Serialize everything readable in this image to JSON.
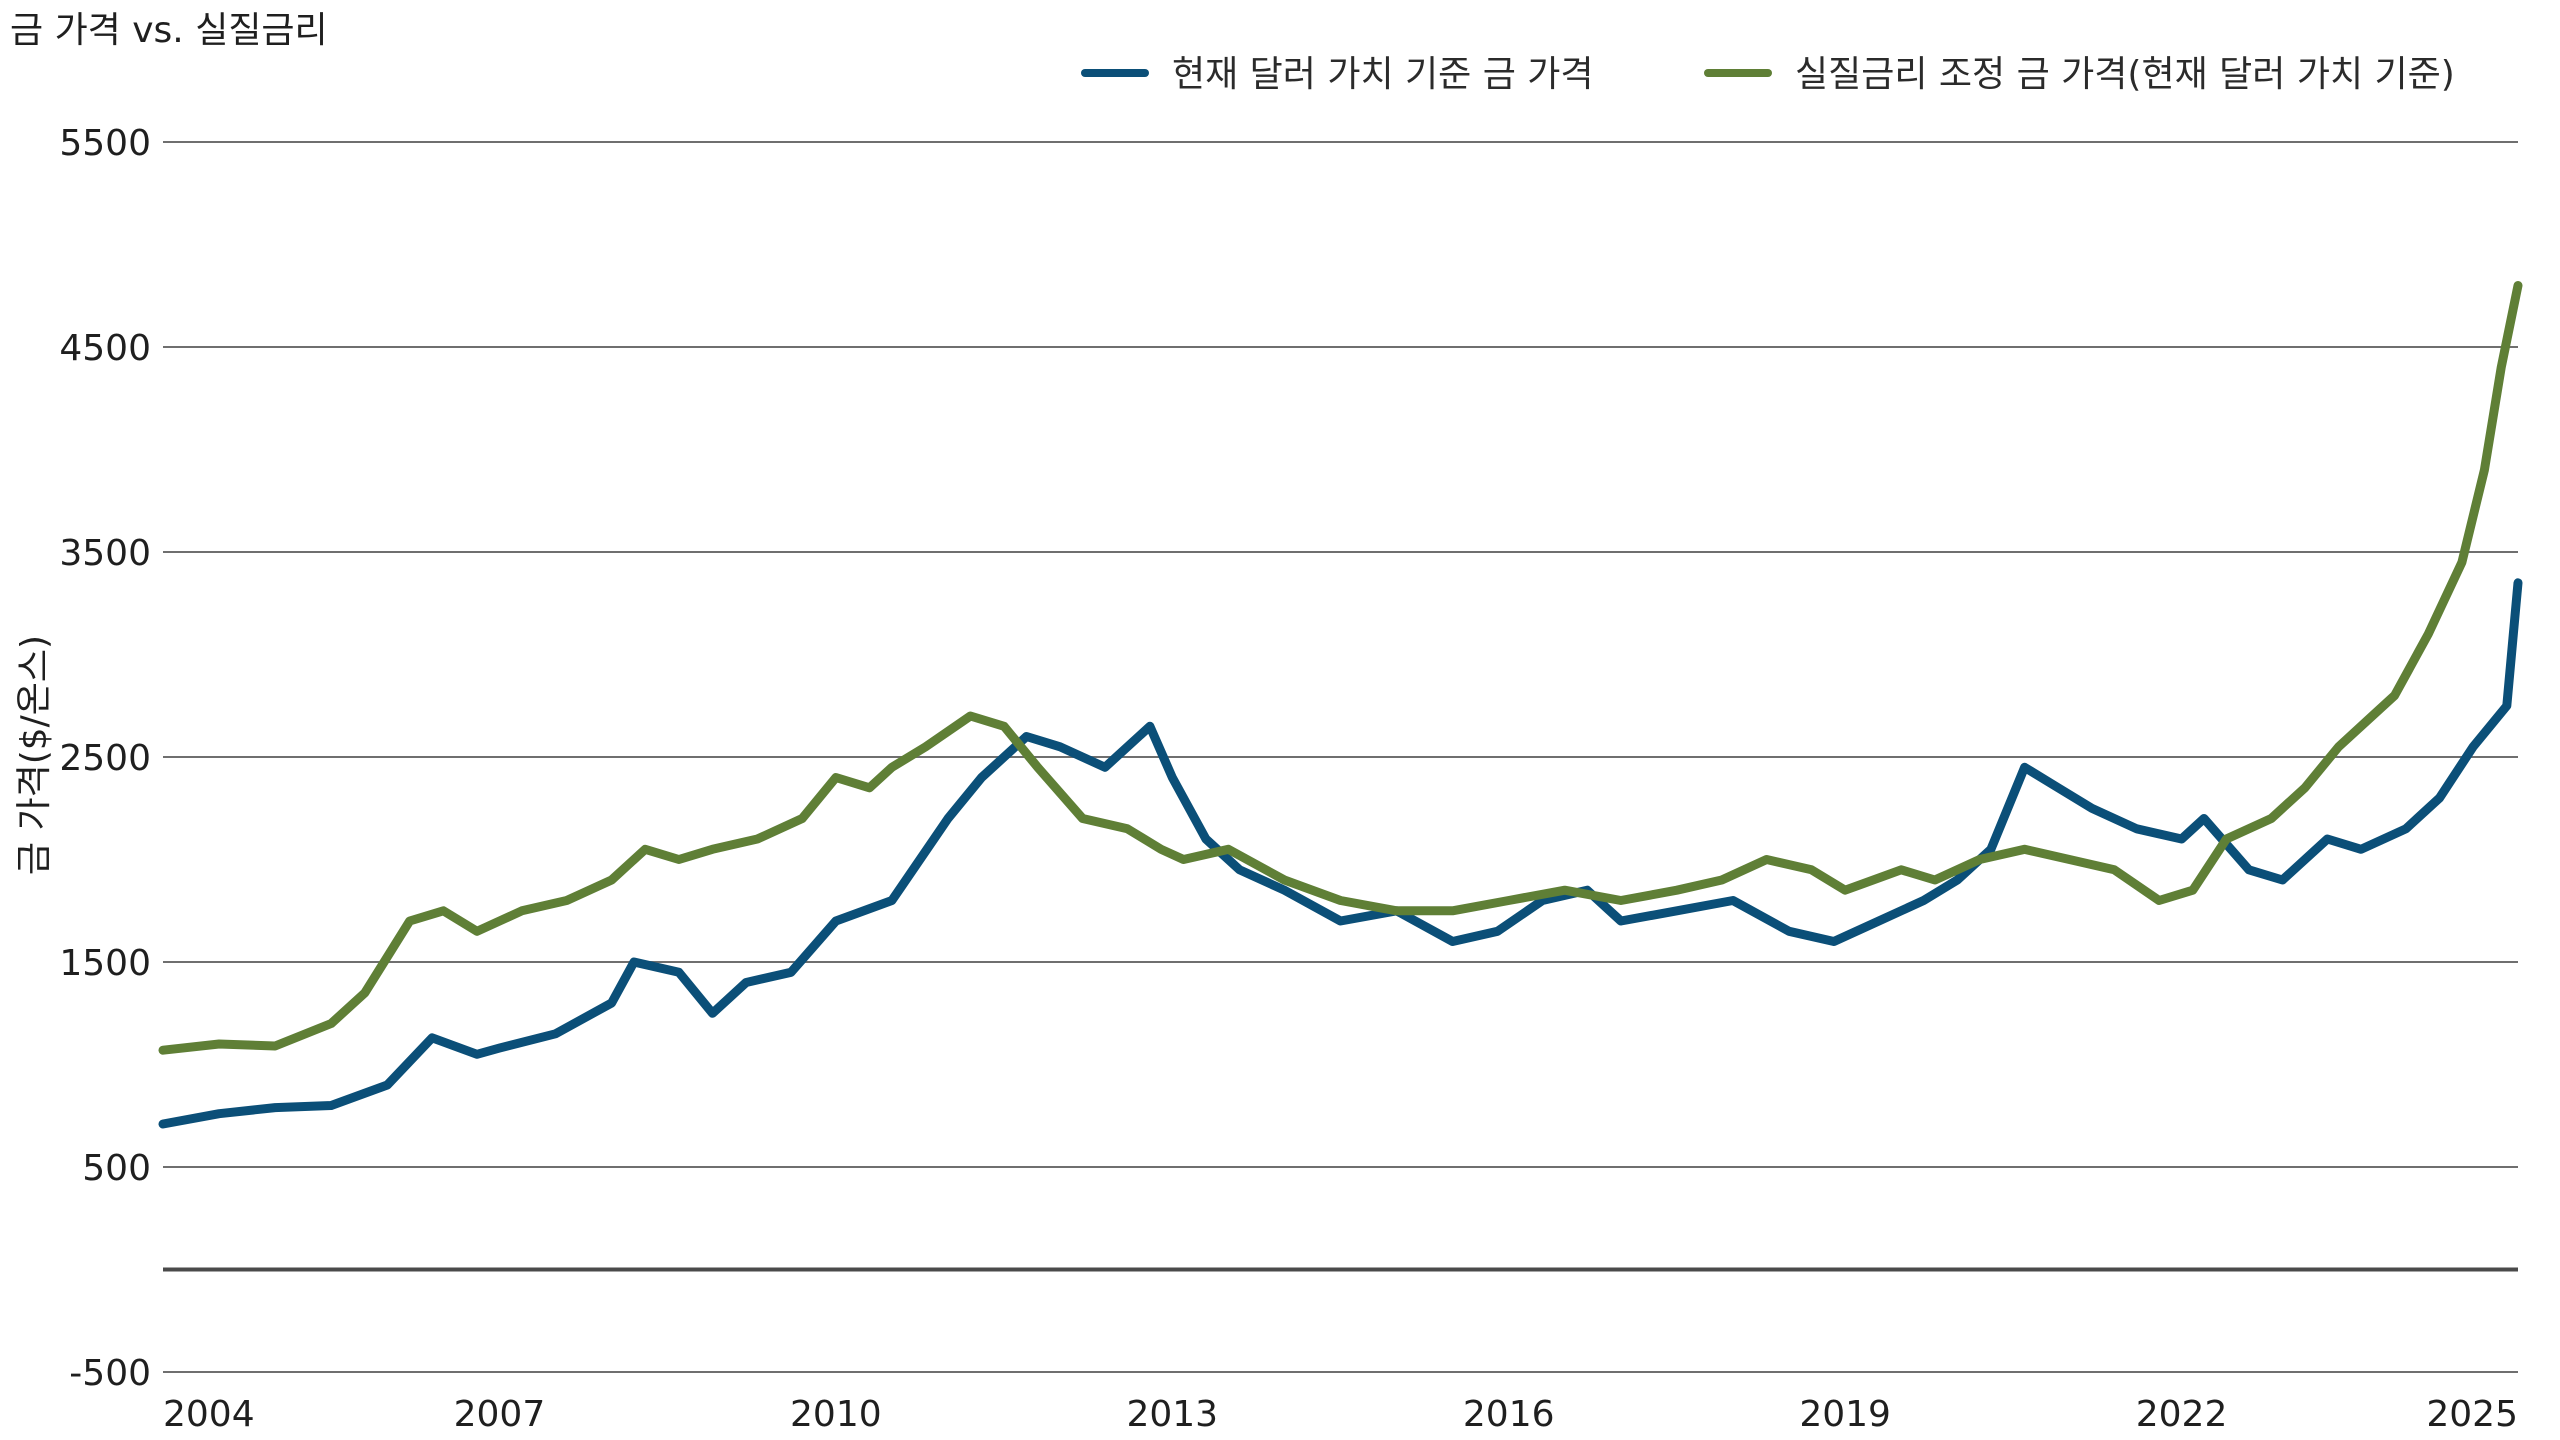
{
  "chart_data": {
    "type": "line",
    "title": "금 가격 vs. 실질금리",
    "ylabel": "금 가격($/온스)",
    "xlabel": "",
    "xlim": [
      2004.0,
      2025.0
    ],
    "ylim": [
      -500,
      5500
    ],
    "y_ticks": [
      5500,
      4500,
      3500,
      2500,
      1500,
      500,
      -500
    ],
    "x_ticks": [
      2004,
      2007,
      2010,
      2013,
      2016,
      2019,
      2022,
      2025
    ],
    "grid": true,
    "legend_position": "top-right",
    "series": [
      {
        "name": "현재 달러 가치 기준 금 가격",
        "color": "#0b4f78",
        "x": [
          2004.0,
          2004.5,
          2005.0,
          2005.5,
          2006.0,
          2006.4,
          2006.8,
          2007.0,
          2007.5,
          2008.0,
          2008.2,
          2008.6,
          2008.9,
          2009.2,
          2009.6,
          2010.0,
          2010.5,
          2011.0,
          2011.3,
          2011.7,
          2012.0,
          2012.4,
          2012.8,
          2013.0,
          2013.3,
          2013.6,
          2014.0,
          2014.5,
          2015.0,
          2015.5,
          2015.9,
          2016.3,
          2016.7,
          2017.0,
          2017.5,
          2018.0,
          2018.5,
          2018.9,
          2019.3,
          2019.7,
          2020.0,
          2020.3,
          2020.6,
          2020.9,
          2021.2,
          2021.6,
          2022.0,
          2022.2,
          2022.6,
          2022.9,
          2023.3,
          2023.6,
          2024.0,
          2024.3,
          2024.6,
          2024.9,
          2025.0
        ],
        "y": [
          710,
          760,
          790,
          800,
          900,
          1130,
          1050,
          1080,
          1150,
          1300,
          1500,
          1450,
          1250,
          1400,
          1450,
          1700,
          1800,
          2200,
          2400,
          2600,
          2550,
          2450,
          2650,
          2400,
          2100,
          1950,
          1850,
          1700,
          1750,
          1600,
          1650,
          1800,
          1850,
          1700,
          1750,
          1800,
          1650,
          1600,
          1700,
          1800,
          1900,
          2050,
          2450,
          2350,
          2250,
          2150,
          2100,
          2200,
          1950,
          1900,
          2100,
          2050,
          2150,
          2300,
          2550,
          2750,
          3350
        ]
      },
      {
        "name": "실질금리 조정 금 가격(현재 달러 가치 기준)",
        "color": "#5f7f36",
        "x": [
          2004.0,
          2004.5,
          2005.0,
          2005.5,
          2005.8,
          2006.2,
          2006.5,
          2006.8,
          2007.2,
          2007.6,
          2008.0,
          2008.3,
          2008.6,
          2008.9,
          2009.3,
          2009.7,
          2010.0,
          2010.3,
          2010.5,
          2010.8,
          2011.2,
          2011.5,
          2011.8,
          2012.2,
          2012.6,
          2012.9,
          2013.1,
          2013.5,
          2014.0,
          2014.5,
          2015.0,
          2015.5,
          2016.0,
          2016.5,
          2017.0,
          2017.5,
          2017.9,
          2018.3,
          2018.7,
          2019.0,
          2019.5,
          2019.8,
          2020.2,
          2020.6,
          2021.0,
          2021.4,
          2021.8,
          2022.1,
          2022.4,
          2022.8,
          2023.1,
          2023.4,
          2023.7,
          2023.9,
          2024.2,
          2024.5,
          2024.7,
          2024.85,
          2025.0
        ],
        "y": [
          1070,
          1100,
          1090,
          1200,
          1350,
          1700,
          1750,
          1650,
          1750,
          1800,
          1900,
          2050,
          2000,
          2050,
          2100,
          2200,
          2400,
          2350,
          2450,
          2550,
          2700,
          2650,
          2450,
          2200,
          2150,
          2050,
          2000,
          2050,
          1900,
          1800,
          1750,
          1750,
          1800,
          1850,
          1800,
          1850,
          1900,
          2000,
          1950,
          1850,
          1950,
          1900,
          2000,
          2050,
          2000,
          1950,
          1800,
          1850,
          2100,
          2200,
          2350,
          2550,
          2700,
          2800,
          3100,
          3450,
          3900,
          4400,
          4800
        ]
      }
    ]
  }
}
